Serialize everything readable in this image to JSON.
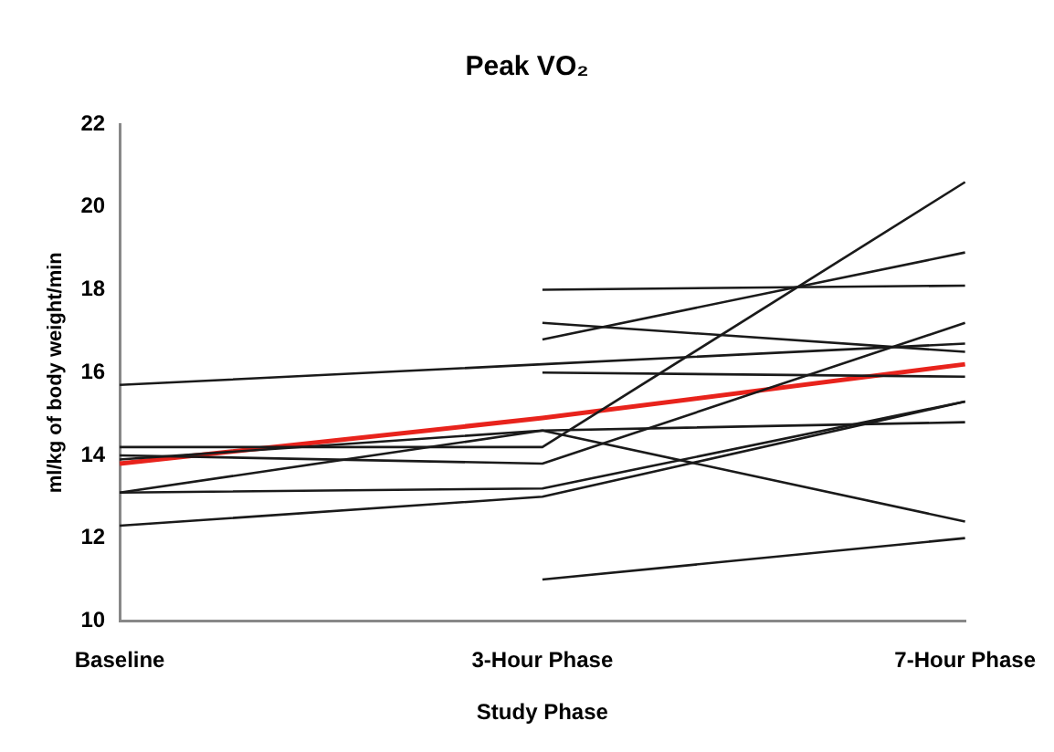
{
  "chart_data": {
    "type": "line",
    "title": "Peak VO₂",
    "xlabel": "Study Phase",
    "ylabel": "ml/kg of body weight/min",
    "categories": [
      "Baseline",
      "3-Hour Phase",
      "7-Hour Phase"
    ],
    "ylim": [
      10,
      22
    ],
    "yticks": [
      10,
      12,
      14,
      16,
      18,
      20,
      22
    ],
    "grid": false,
    "legend": false,
    "marker": "none",
    "line_style": "solid",
    "series": [
      {
        "color": "#1a1a1a",
        "values": [
          15.7,
          16.2,
          16.7
        ]
      },
      {
        "color": "#1a1a1a",
        "values": [
          null,
          18.0,
          18.1
        ]
      },
      {
        "color": "#1a1a1a",
        "values": [
          null,
          17.2,
          16.5
        ]
      },
      {
        "color": "#1a1a1a",
        "values": [
          null,
          16.8,
          18.9
        ]
      },
      {
        "color": "#1a1a1a",
        "values": [
          null,
          16.0,
          15.9
        ]
      },
      {
        "color": "#1a1a1a",
        "values": [
          13.1,
          14.6,
          14.8
        ]
      },
      {
        "color": "#1a1a1a",
        "values": [
          14.2,
          14.2,
          20.6
        ]
      },
      {
        "color": "#1a1a1a",
        "values": [
          14.0,
          13.8,
          17.2
        ]
      },
      {
        "color": "#1a1a1a",
        "values": [
          13.9,
          14.6,
          12.4
        ]
      },
      {
        "color": "#1a1a1a",
        "values": [
          13.1,
          13.2,
          15.3
        ]
      },
      {
        "color": "#1a1a1a",
        "values": [
          12.3,
          13.0,
          15.3
        ]
      },
      {
        "color": "#1a1a1a",
        "values": [
          null,
          11.0,
          12.0
        ]
      },
      {
        "color": "#e8231c",
        "values": [
          13.8,
          14.9,
          16.2
        ]
      }
    ]
  }
}
